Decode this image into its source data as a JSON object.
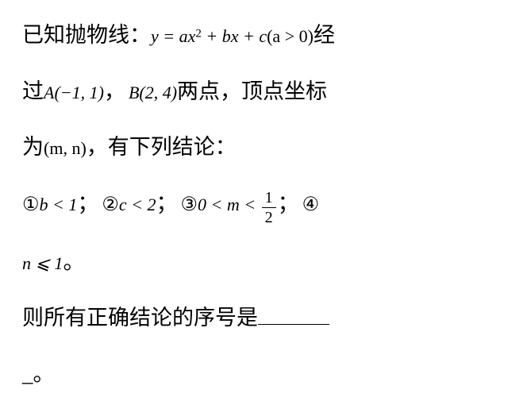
{
  "typography": {
    "cjk_fontsize": 27,
    "math_fontsize": 22,
    "circled_fontsize": 24,
    "frac_fontsize": 20,
    "text_color": "#000000",
    "background_color": "#ffffff"
  },
  "problem": {
    "line1": {
      "t1": "已知抛物线：",
      "expr": "y = ax",
      "super": "2",
      "expr2": " + bx + c",
      "paren": "(a > 0)",
      "t2": "经"
    },
    "line2": {
      "t1": "过",
      "ptA": "A(−1, 1)",
      "t2": "，",
      "ptB": "B(2, 4)",
      "t3": "两点，顶点坐标"
    },
    "line3": {
      "t1": "为",
      "expr": "(m, n)",
      "t2": "，有下列结论："
    },
    "line4": {
      "c1": "①",
      "e1": "b < 1",
      "sep1": "；",
      "c2": "②",
      "e2": "c < 2",
      "sep2": "；",
      "c3": "③",
      "e3a": "0 < m < ",
      "frac_num": "1",
      "frac_den": "2",
      "sep3": "；",
      "c4": "④"
    },
    "line5": {
      "e4": "n ⩽ 1",
      "period": "。"
    },
    "line6": {
      "t1": "则所有正确结论的序号是"
    },
    "line7": {
      "dash": "_",
      "period": "。"
    }
  }
}
